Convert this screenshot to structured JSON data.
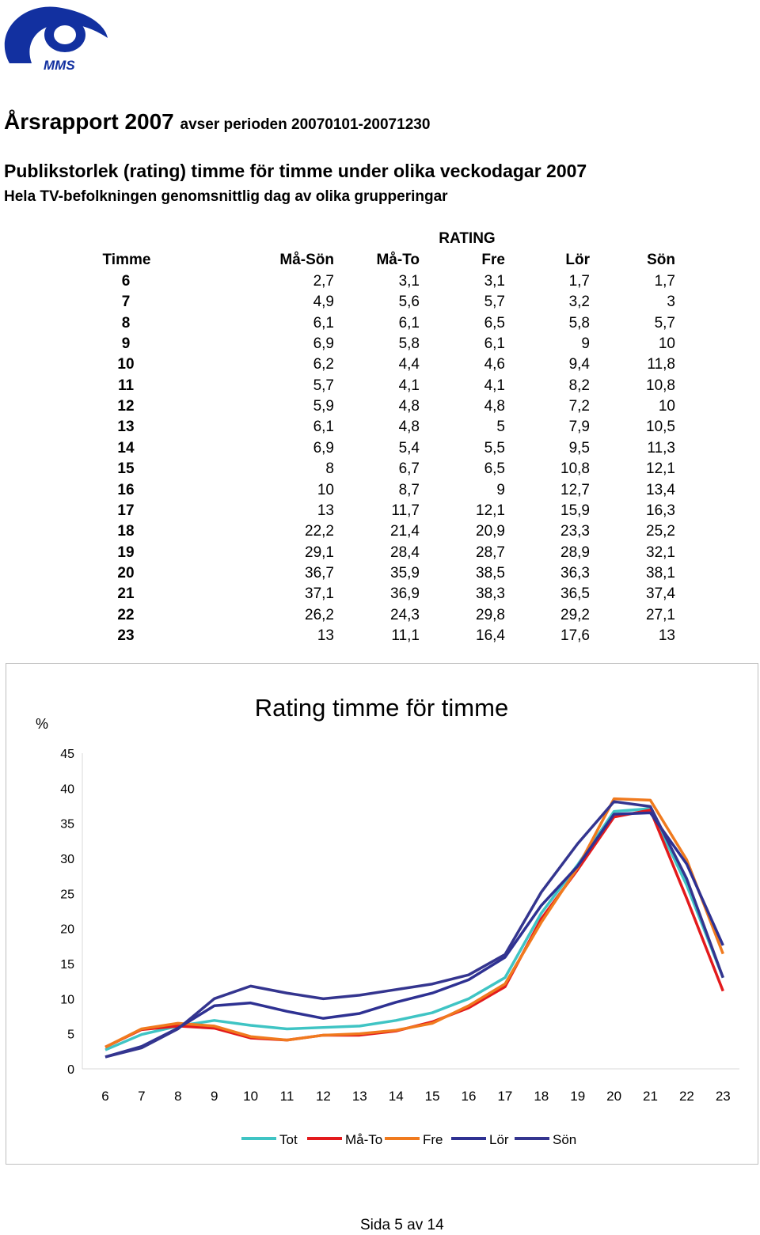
{
  "logo": {
    "text": "MMS"
  },
  "report": {
    "title": "Årsrapport 2007",
    "period": "avser perioden 20070101-20071230",
    "heading": "Publikstorlek (rating) timme för timme under olika veckodagar 2007",
    "subheading": "Hela TV-befolkningen genomsnittlig dag av olika grupperingar"
  },
  "table": {
    "group_label": "RATING",
    "columns": [
      "Timme",
      "Må-Sön",
      "Må-To",
      "Fre",
      "Lör",
      "Sön"
    ],
    "rows": [
      [
        "6",
        "2,7",
        "3,1",
        "3,1",
        "1,7",
        "1,7"
      ],
      [
        "7",
        "4,9",
        "5,6",
        "5,7",
        "3,2",
        "3"
      ],
      [
        "8",
        "6,1",
        "6,1",
        "6,5",
        "5,8",
        "5,7"
      ],
      [
        "9",
        "6,9",
        "5,8",
        "6,1",
        "9",
        "10"
      ],
      [
        "10",
        "6,2",
        "4,4",
        "4,6",
        "9,4",
        "11,8"
      ],
      [
        "11",
        "5,7",
        "4,1",
        "4,1",
        "8,2",
        "10,8"
      ],
      [
        "12",
        "5,9",
        "4,8",
        "4,8",
        "7,2",
        "10"
      ],
      [
        "13",
        "6,1",
        "4,8",
        "5",
        "7,9",
        "10,5"
      ],
      [
        "14",
        "6,9",
        "5,4",
        "5,5",
        "9,5",
        "11,3"
      ],
      [
        "15",
        "8",
        "6,7",
        "6,5",
        "10,8",
        "12,1"
      ],
      [
        "16",
        "10",
        "8,7",
        "9",
        "12,7",
        "13,4"
      ],
      [
        "17",
        "13",
        "11,7",
        "12,1",
        "15,9",
        "16,3"
      ],
      [
        "18",
        "22,2",
        "21,4",
        "20,9",
        "23,3",
        "25,2"
      ],
      [
        "19",
        "29,1",
        "28,4",
        "28,7",
        "28,9",
        "32,1"
      ],
      [
        "20",
        "36,7",
        "35,9",
        "38,5",
        "36,3",
        "38,1"
      ],
      [
        "21",
        "37,1",
        "36,9",
        "38,3",
        "36,5",
        "37,4"
      ],
      [
        "22",
        "26,2",
        "24,3",
        "29,8",
        "29,2",
        "27,1"
      ],
      [
        "23",
        "13",
        "11,1",
        "16,4",
        "17,6",
        "13"
      ]
    ]
  },
  "chart_data": {
    "type": "line",
    "title": "Rating timme för timme",
    "ylabel": "%",
    "xlabel": "",
    "ylim": [
      0,
      45
    ],
    "yticks": [
      "0",
      "5",
      "10",
      "15",
      "20",
      "25",
      "30",
      "35",
      "40",
      "45"
    ],
    "categories": [
      "6",
      "7",
      "8",
      "9",
      "10",
      "11",
      "12",
      "13",
      "14",
      "15",
      "16",
      "17",
      "18",
      "19",
      "20",
      "21",
      "22",
      "23"
    ],
    "grid": false,
    "legend_position": "bottom",
    "series": [
      {
        "name": "Tot",
        "color": "#3fc4c4",
        "values": [
          2.7,
          4.9,
          6.1,
          6.9,
          6.2,
          5.7,
          5.9,
          6.1,
          6.9,
          8,
          10,
          13,
          22.2,
          29.1,
          36.7,
          37.1,
          26.2,
          13
        ]
      },
      {
        "name": "Må-To",
        "color": "#e31a1c",
        "values": [
          3.1,
          5.6,
          6.1,
          5.8,
          4.4,
          4.1,
          4.8,
          4.8,
          5.4,
          6.7,
          8.7,
          11.7,
          21.4,
          28.4,
          35.9,
          36.9,
          24.3,
          11.1
        ]
      },
      {
        "name": "Fre",
        "color": "#f07a1e",
        "values": [
          3.1,
          5.7,
          6.5,
          6.1,
          4.6,
          4.1,
          4.8,
          5,
          5.5,
          6.5,
          9,
          12.1,
          20.9,
          28.7,
          38.5,
          38.3,
          29.8,
          16.4
        ]
      },
      {
        "name": "Lör",
        "color": "#2e3192",
        "values": [
          1.7,
          3.2,
          5.8,
          9,
          9.4,
          8.2,
          7.2,
          7.9,
          9.5,
          10.8,
          12.7,
          15.9,
          23.3,
          28.9,
          36.3,
          36.5,
          29.2,
          17.6
        ]
      },
      {
        "name": "Sön",
        "color": "#34358f",
        "values": [
          1.7,
          3,
          5.7,
          10,
          11.8,
          10.8,
          10,
          10.5,
          11.3,
          12.1,
          13.4,
          16.3,
          25.2,
          32.1,
          38.1,
          37.4,
          27.1,
          13
        ]
      }
    ]
  },
  "footer": {
    "page": "Sida 5 av 14"
  }
}
